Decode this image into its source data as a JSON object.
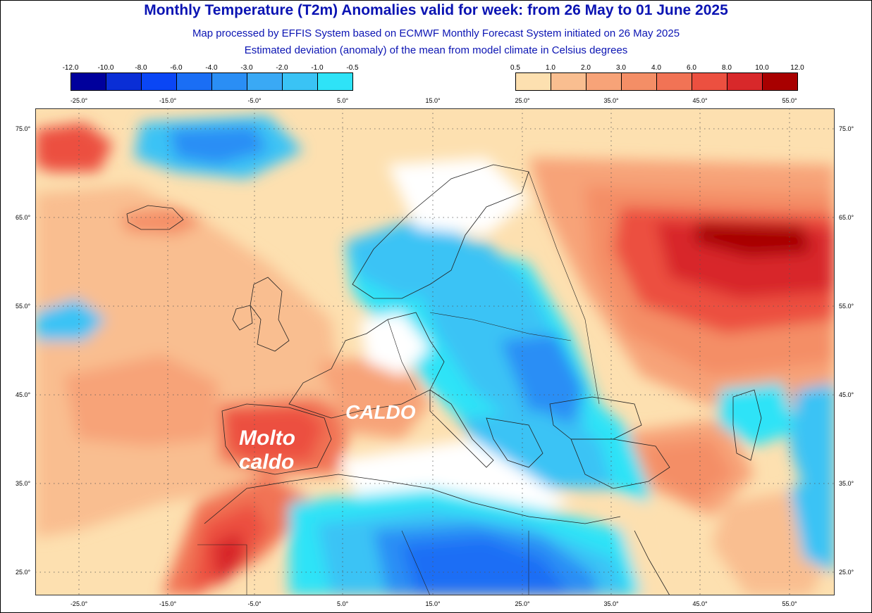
{
  "header": {
    "title": "Monthly Temperature (T2m) Anomalies valid for week: from 26 May to 01 June 2025",
    "subtitle1": "Map processed by EFFIS System based on ECMWF Monthly Forecast System initiated on 26 May 2025",
    "subtitle2": "Estimated deviation (anomaly) of the mean from model climate in Celsius degrees"
  },
  "legend_cold": {
    "labels": [
      "-12.0",
      "-10.0",
      "-8.0",
      "-6.0",
      "-4.0",
      "-3.0",
      "-2.0",
      "-1.0",
      "-0.5"
    ],
    "colors": [
      "#00009c",
      "#0a2ed6",
      "#0a46f5",
      "#1a6ef5",
      "#2a8ef5",
      "#3aa9f5",
      "#3ac3f5",
      "#2ee3f7"
    ]
  },
  "legend_warm": {
    "labels": [
      "0.5",
      "1.0",
      "2.0",
      "3.0",
      "4.0",
      "6.0",
      "8.0",
      "10.0",
      "12.0"
    ],
    "colors": [
      "#fde0b0",
      "#f9be90",
      "#f7a378",
      "#f48e66",
      "#f17355",
      "#ec5040",
      "#d8282a",
      "#a80000"
    ]
  },
  "axes": {
    "lon_labels": [
      "-25.0°",
      "-15.0°",
      "-5.0°",
      "5.0°",
      "15.0°",
      "25.0°",
      "35.0°",
      "45.0°",
      "55.0°"
    ],
    "lat_labels": [
      "75.0°",
      "65.0°",
      "55.0°",
      "45.0°",
      "35.0°",
      "25.0°"
    ]
  },
  "annotations": {
    "caldo": "CALDO",
    "molto_line1": "Molto",
    "molto_line2": "caldo"
  }
}
